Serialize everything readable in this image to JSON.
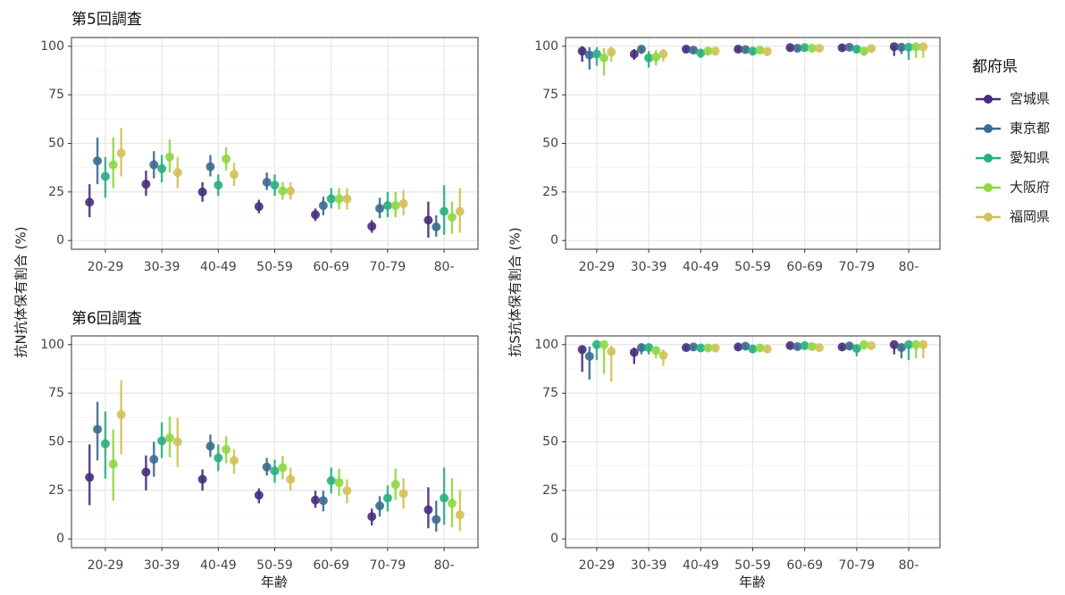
{
  "chart_data": [
    {
      "type": "pointrange",
      "title": "第5回調査",
      "ylabel": "抗N抗体保有割合 (%)",
      "legend_title": "都府県",
      "legend": "right",
      "grid": true,
      "categories": [
        "20-29",
        "30-39",
        "40-49",
        "50-59",
        "60-69",
        "70-79",
        "80-"
      ],
      "ylim": [
        -4.5,
        104.5
      ],
      "yticks": [
        0,
        25,
        50,
        75,
        100
      ],
      "series": [
        {
          "name": "宮城県",
          "color": "#472d7b",
          "values": [
            19.7,
            29,
            25,
            17.5,
            13.3,
            7.3,
            10.5
          ],
          "low": [
            12,
            23,
            20,
            14,
            10,
            4,
            1.5
          ],
          "high": [
            29,
            36,
            30,
            21,
            16.5,
            10.5,
            20
          ]
        },
        {
          "name": "東京都",
          "color": "#3b6b8f",
          "values": [
            41,
            39,
            38,
            30,
            18,
            16.5,
            7
          ],
          "low": [
            29,
            32,
            33,
            26,
            13,
            11.5,
            2
          ],
          "high": [
            53,
            46,
            44,
            35,
            22.5,
            22,
            13
          ]
        },
        {
          "name": "愛知県",
          "color": "#29af7f",
          "values": [
            33,
            37,
            28.5,
            28.5,
            21.5,
            18,
            15
          ],
          "low": [
            22,
            30,
            23,
            23,
            16.5,
            12,
            3
          ],
          "high": [
            43,
            44,
            34,
            34,
            27,
            25,
            28.5
          ]
        },
        {
          "name": "大阪府",
          "color": "#8fd744",
          "values": [
            39,
            43,
            42,
            25.5,
            21.5,
            18,
            12
          ],
          "low": [
            27,
            35,
            36,
            21,
            16,
            12,
            3.5
          ],
          "high": [
            53,
            52,
            48,
            30,
            27,
            25,
            20
          ]
        },
        {
          "name": "福岡県",
          "color": "#d1c15a",
          "values": [
            45,
            35,
            34,
            25.5,
            21.5,
            19,
            15
          ],
          "low": [
            33,
            27,
            28,
            21,
            16,
            13,
            4
          ],
          "high": [
            58,
            43,
            40,
            30,
            27,
            26,
            27
          ]
        }
      ]
    },
    {
      "type": "pointrange",
      "ylabel": "抗S抗体保有割合 (%)",
      "grid": true,
      "categories": [
        "20-29",
        "30-39",
        "40-49",
        "50-59",
        "60-69",
        "70-79",
        "80-"
      ],
      "ylim": [
        -4.5,
        104.5
      ],
      "yticks": [
        0,
        25,
        50,
        75,
        100
      ],
      "series": [
        {
          "color": "#472d7b",
          "values": [
            97.5,
            96,
            98.5,
            98.5,
            99.3,
            99.2,
            99.8
          ],
          "low": [
            92,
            93,
            97,
            97,
            98.3,
            98,
            95
          ],
          "high": [
            100,
            98.5,
            99.5,
            99.5,
            99.8,
            99.8,
            100
          ]
        },
        {
          "color": "#3b6b8f",
          "values": [
            95.5,
            98.5,
            98,
            98.3,
            99,
            99.5,
            99.5
          ],
          "low": [
            88,
            96,
            96.5,
            97,
            98,
            98.5,
            96
          ],
          "high": [
            99.5,
            99.8,
            99.3,
            99.3,
            99.7,
            100,
            100
          ]
        },
        {
          "color": "#29af7f",
          "values": [
            96,
            94,
            96.5,
            97.5,
            99.3,
            98.5,
            99.5
          ],
          "low": [
            90,
            89,
            94,
            95.5,
            98.3,
            96.5,
            93
          ],
          "high": [
            99.5,
            97.5,
            98.5,
            99,
            99.8,
            99.5,
            100
          ]
        },
        {
          "color": "#8fd744",
          "values": [
            94,
            94.5,
            97.5,
            98,
            99,
            97.5,
            99.7
          ],
          "low": [
            85,
            90,
            95.5,
            96.5,
            97.5,
            95,
            94
          ],
          "high": [
            99,
            98,
            99,
            99.3,
            99.8,
            99,
            100
          ]
        },
        {
          "color": "#d1c15a",
          "values": [
            97,
            96,
            97.5,
            97.3,
            99,
            98.8,
            99.7
          ],
          "low": [
            92,
            92,
            95.5,
            95,
            97.8,
            97,
            94
          ],
          "high": [
            99.8,
            98.5,
            99,
            98.8,
            99.7,
            99.7,
            100
          ]
        }
      ]
    },
    {
      "type": "pointrange",
      "title": "第6回調査",
      "xlabel": "年齢",
      "grid": true,
      "categories": [
        "20-29",
        "30-39",
        "40-49",
        "50-59",
        "60-69",
        "70-79",
        "80-"
      ],
      "ylim": [
        -4.5,
        104.5
      ],
      "yticks": [
        0,
        25,
        50,
        75,
        100
      ],
      "series": [
        {
          "color": "#472d7b",
          "values": [
            31.7,
            34.4,
            30.7,
            22.5,
            20,
            11.5,
            15
          ],
          "low": [
            17.4,
            25,
            24.8,
            18.3,
            16,
            6.9,
            5.5
          ],
          "high": [
            48.6,
            43,
            35.8,
            26,
            24.8,
            15.6,
            26.6
          ]
        },
        {
          "color": "#3b6b8f",
          "values": [
            56.4,
            41,
            47.7,
            37,
            19.7,
            17,
            10
          ],
          "low": [
            40.4,
            32,
            42.2,
            32.6,
            14.2,
            11.5,
            3.7
          ],
          "high": [
            70.6,
            50,
            53.7,
            41.7,
            24.8,
            22,
            19.7
          ]
        },
        {
          "color": "#29af7f",
          "values": [
            49,
            50.5,
            41.7,
            35,
            30,
            21,
            21
          ],
          "low": [
            31,
            41.7,
            34.9,
            28.9,
            23.4,
            14.2,
            7.3
          ],
          "high": [
            65.6,
            60,
            48.6,
            40.8,
            36.7,
            27.5,
            36.7
          ]
        },
        {
          "color": "#8fd744",
          "values": [
            38.5,
            52,
            46,
            36.7,
            29,
            28,
            18.3
          ],
          "low": [
            19.7,
            42,
            39,
            30.7,
            22,
            20,
            6
          ],
          "high": [
            56.4,
            63,
            52.8,
            42.7,
            36.2,
            36.2,
            31.2
          ]
        },
        {
          "color": "#d1c15a",
          "values": [
            64,
            50,
            40.4,
            30.7,
            24.8,
            23.4,
            12.4
          ],
          "low": [
            43.6,
            37,
            33.5,
            24.8,
            18.3,
            15.6,
            4.1
          ],
          "high": [
            81.7,
            62.4,
            46.3,
            36.7,
            30.7,
            31.2,
            25.2
          ]
        }
      ]
    },
    {
      "type": "pointrange",
      "xlabel": "年齢",
      "grid": true,
      "categories": [
        "20-29",
        "30-39",
        "40-49",
        "50-59",
        "60-69",
        "70-79",
        "80-"
      ],
      "ylim": [
        -4.5,
        104.5
      ],
      "yticks": [
        0,
        25,
        50,
        75,
        100
      ],
      "series": [
        {
          "color": "#472d7b",
          "values": [
            97.5,
            96,
            98.5,
            98.8,
            99.5,
            98.8,
            100
          ],
          "low": [
            86,
            90,
            97,
            97.5,
            98.8,
            97.5,
            95
          ],
          "high": [
            99.5,
            98.5,
            99.5,
            99.7,
            99.9,
            99.6,
            100
          ]
        },
        {
          "color": "#3b6b8f",
          "values": [
            94,
            98.5,
            98.8,
            99.2,
            99,
            99.3,
            98.5
          ],
          "low": [
            82,
            95,
            97.5,
            98,
            97.8,
            97.5,
            93
          ],
          "high": [
            99,
            99.8,
            99.7,
            99.8,
            99.7,
            100,
            100
          ]
        },
        {
          "color": "#29af7f",
          "values": [
            100,
            98.5,
            98.3,
            97.8,
            99.5,
            98,
            100
          ],
          "low": [
            92,
            95,
            96.5,
            95.5,
            98.3,
            94,
            92
          ],
          "high": [
            100,
            99.8,
            99.5,
            99.3,
            100,
            99.5,
            100
          ]
        },
        {
          "color": "#8fd744",
          "values": [
            100,
            97,
            98.3,
            98.3,
            99,
            100,
            100
          ],
          "low": [
            85,
            93,
            96.5,
            96.5,
            97.5,
            97.5,
            93
          ],
          "high": [
            100,
            99,
            99.3,
            99.5,
            99.8,
            100,
            100
          ]
        },
        {
          "color": "#d1c15a",
          "values": [
            96.5,
            94.5,
            98.3,
            97.8,
            98.5,
            99.5,
            100
          ],
          "low": [
            81,
            89,
            96,
            95.5,
            96.5,
            97.5,
            93
          ],
          "high": [
            99.5,
            97.5,
            99.5,
            99.2,
            99.5,
            100,
            100
          ]
        }
      ]
    }
  ]
}
